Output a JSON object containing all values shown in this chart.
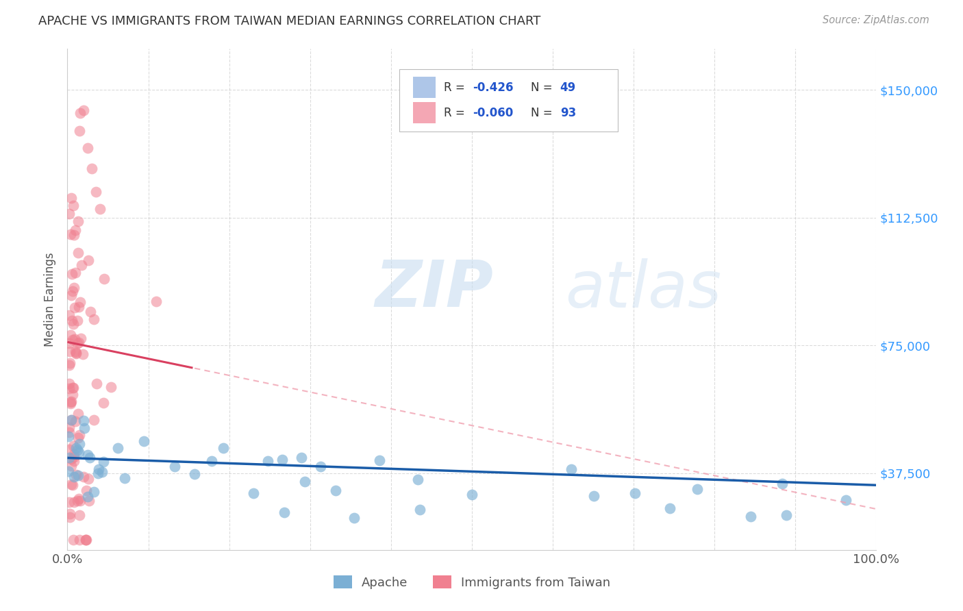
{
  "title": "APACHE VS IMMIGRANTS FROM TAIWAN MEDIAN EARNINGS CORRELATION CHART",
  "source": "Source: ZipAtlas.com",
  "ylabel": "Median Earnings",
  "xlim": [
    0.0,
    1.0
  ],
  "ylim": [
    15000,
    162000
  ],
  "yticks": [
    37500,
    75000,
    112500,
    150000
  ],
  "ytick_labels": [
    "$37,500",
    "$75,000",
    "$112,500",
    "$150,000"
  ],
  "apache_color": "#7bafd4",
  "taiwan_color": "#f08090",
  "apache_line_color": "#1a5ca8",
  "taiwan_line_color": "#d94060",
  "taiwan_dash_color": "#f0a0b0",
  "background_color": "#ffffff",
  "grid_color": "#cccccc",
  "legend_blue_color": "#aec6e8",
  "legend_pink_color": "#f4a7b4",
  "watermark_color": "#d8e8f5"
}
